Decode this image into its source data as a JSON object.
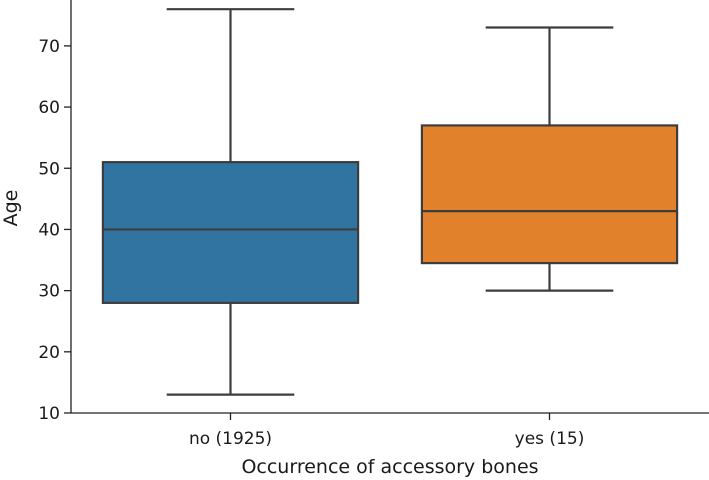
{
  "chart_data": {
    "type": "box",
    "xlabel": "Occurrence of accessory bones",
    "ylabel": "Age",
    "ylim": [
      10,
      77.5
    ],
    "yticks": [
      10,
      20,
      30,
      40,
      50,
      60,
      70
    ],
    "grid": false,
    "categories": [
      "no (1925)",
      "yes (15)"
    ],
    "boxes": [
      {
        "category": "no (1925)",
        "whisker_low": 13,
        "q1": 28,
        "median": 40,
        "q3": 51,
        "whisker_high": 76,
        "color": "#3274a1"
      },
      {
        "category": "yes (15)",
        "whisker_low": 30,
        "q1": 34.5,
        "median": 43,
        "q3": 57,
        "whisker_high": 73,
        "color": "#e1812c"
      }
    ]
  }
}
